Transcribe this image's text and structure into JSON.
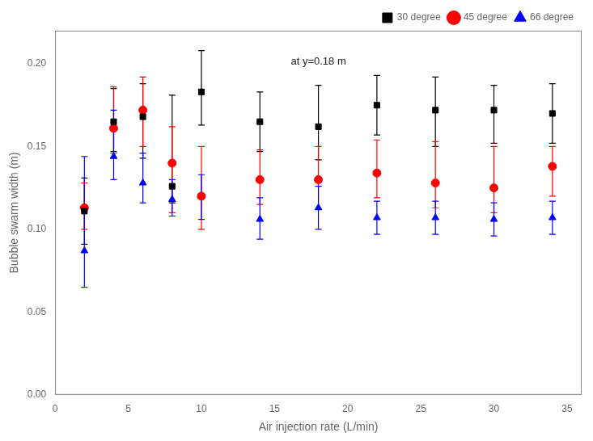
{
  "chart_data": {
    "type": "scatter",
    "xlabel": "Air injection rate (L/min)",
    "ylabel": "Bubble swarm width (m)",
    "annotations": [
      "at y=0.18 m"
    ],
    "x": [
      2,
      4,
      6,
      8,
      10,
      14,
      18,
      22,
      26,
      30,
      34
    ],
    "series": [
      {
        "name": "30 degree",
        "color": "#000000",
        "marker": "square",
        "values": [
          0.111,
          0.165,
          0.168,
          0.126,
          0.183,
          0.165,
          0.162,
          0.175,
          0.172,
          0.172,
          0.17
        ],
        "yerr_lo": [
          0.02,
          0.018,
          0.025,
          0.01,
          0.02,
          0.018,
          0.02,
          0.018,
          0.022,
          0.02,
          0.018
        ],
        "yerr_hi": [
          0.02,
          0.02,
          0.02,
          0.055,
          0.025,
          0.018,
          0.025,
          0.018,
          0.02,
          0.015,
          0.018
        ]
      },
      {
        "name": "45 degree",
        "color": "#ff0000",
        "marker": "circle",
        "values": [
          0.113,
          0.161,
          0.172,
          0.14,
          0.12,
          0.13,
          0.13,
          0.134,
          0.128,
          0.125,
          0.138
        ],
        "yerr_lo": [
          0.013,
          0.015,
          0.022,
          0.03,
          0.02,
          0.015,
          0.018,
          0.015,
          0.015,
          0.015,
          0.018
        ],
        "yerr_hi": [
          0.015,
          0.025,
          0.02,
          0.022,
          0.03,
          0.018,
          0.02,
          0.02,
          0.025,
          0.025,
          0.012
        ]
      },
      {
        "name": "66 degree",
        "color": "#0000ff",
        "marker": "triangle",
        "values": [
          0.087,
          0.144,
          0.128,
          0.118,
          0.12,
          0.106,
          0.113,
          0.107,
          0.107,
          0.106,
          0.107
        ],
        "yerr_lo": [
          0.022,
          0.014,
          0.012,
          0.01,
          0.014,
          0.012,
          0.013,
          0.01,
          0.01,
          0.01,
          0.01
        ],
        "yerr_hi": [
          0.057,
          0.028,
          0.018,
          0.012,
          0.013,
          0.013,
          0.013,
          0.01,
          0.01,
          0.01,
          0.01
        ]
      }
    ],
    "xlim": [
      0,
      36
    ],
    "xticks": [
      0,
      5,
      10,
      15,
      20,
      25,
      30,
      35
    ],
    "ylim": [
      0.0,
      0.22
    ],
    "yticks": [
      {
        "value": 0.0,
        "label": "0.00"
      },
      0.05,
      {
        "value": 0.1,
        "label": "0.10"
      },
      0.15,
      {
        "value": 0.2,
        "label": "0.20"
      }
    ],
    "grid": false,
    "legend": "upper right"
  }
}
